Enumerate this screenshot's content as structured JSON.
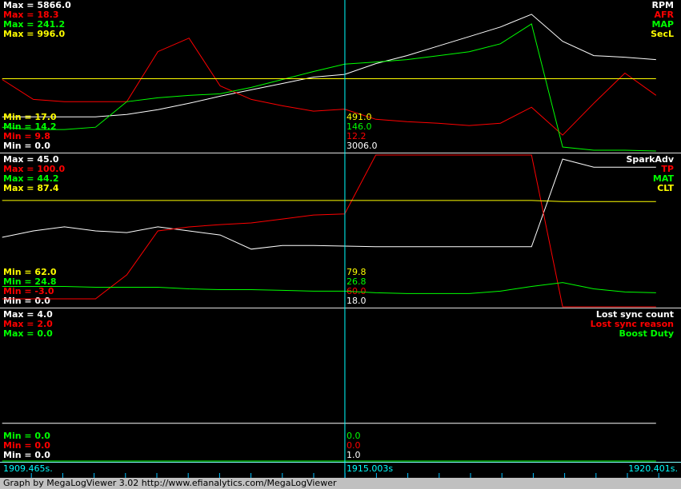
{
  "times": [
    1909.5,
    1910.0,
    1910.5,
    1911.0,
    1911.5,
    1912.0,
    1912.5,
    1913.0,
    1913.5,
    1914.0,
    1914.5,
    1915.0,
    1915.5,
    1916.0,
    1916.5,
    1917.0,
    1917.5,
    1918.0,
    1918.5,
    1919.0,
    1919.5,
    1920.0
  ],
  "time_axis": {
    "xlim": [
      1909.465,
      1920.401
    ],
    "start_label": "1909.465s.",
    "end_label": "1920.401s.",
    "cursor": {
      "value": 1915.003,
      "label": "1915.003s"
    }
  },
  "panels": [
    {
      "traces": [
        {
          "name": "RPM",
          "color": "#ffffff",
          "max": {
            "value": 5866,
            "label": "Max = 5866.0"
          },
          "min": {
            "value": 0,
            "label": "Min = 0.0"
          },
          "cursor": {
            "value": 3006,
            "label": "3006.0"
          },
          "values": [
            1358,
            1358,
            1358,
            1358,
            1451,
            1636,
            1883,
            2161,
            2408,
            2655,
            2902,
            3006,
            3427,
            3736,
            4106,
            4477,
            4847,
            5341,
            4291,
            3736,
            3674,
            3581
          ]
        },
        {
          "name": "AFR",
          "color": "#ff0000",
          "max": {
            "value": 18.3,
            "label": "Max = 18.3"
          },
          "min": {
            "value": 9.8,
            "label": "Min = 9.8"
          },
          "cursor": {
            "value": 12.2,
            "label": "12.2"
          },
          "values": [
            13.87,
            12.75,
            12.62,
            12.62,
            12.62,
            15.44,
            16.2,
            13.51,
            12.75,
            12.39,
            12.09,
            12.2,
            11.63,
            11.5,
            11.41,
            11.28,
            11.41,
            12.31,
            10.74,
            12.53,
            14.23,
            12.98
          ]
        },
        {
          "name": "MAP",
          "color": "#00ff00",
          "max": {
            "value": 241.2,
            "label": "Max = 241.2"
          },
          "min": {
            "value": 14.2,
            "label": "Min = 14.2"
          },
          "cursor": {
            "value": 146.0,
            "label": "146.0"
          },
          "values": [
            51.2,
            47.7,
            47.7,
            51.2,
            89.5,
            95.4,
            99.0,
            101.4,
            111.0,
            122.9,
            134.9,
            146.0,
            149.2,
            152.8,
            158.7,
            164.7,
            176.6,
            206.5,
            21.4,
            16.6,
            16.6,
            15.4
          ]
        },
        {
          "name": "SecL",
          "color": "#ffff00",
          "max": {
            "value": 996,
            "label": "Max = 996.0"
          },
          "min": {
            "value": 17,
            "label": "Min = 17.0"
          },
          "cursor": {
            "value": 491,
            "label": "491.0"
          },
          "values": [
            491,
            491,
            491,
            491,
            491,
            491,
            491,
            491,
            491,
            491,
            491,
            491,
            491,
            491,
            491,
            491,
            491,
            491,
            491,
            491,
            491,
            491
          ]
        }
      ]
    },
    {
      "traces": [
        {
          "name": "SparkAdv",
          "color": "#ffffff",
          "max": {
            "value": 45,
            "label": "Max = 45.0"
          },
          "min": {
            "value": 0,
            "label": "Min = 0.0"
          },
          "cursor": {
            "value": 18,
            "label": "18.0"
          },
          "values": [
            20.6,
            22.5,
            23.7,
            22.5,
            22.0,
            23.7,
            22.5,
            21.3,
            17.1,
            18.2,
            18.2,
            18.0,
            17.8,
            17.8,
            17.8,
            17.8,
            17.8,
            17.8,
            43.8,
            41.4,
            41.4,
            41.4
          ]
        },
        {
          "name": "TP",
          "color": "#ff0000",
          "max": {
            "value": 100,
            "label": "Max = 100.0"
          },
          "min": {
            "value": -3,
            "label": "Min = -3.0"
          },
          "cursor": {
            "value": 60,
            "label": "60.0"
          },
          "values": [
            2.4,
            2.4,
            2.4,
            2.4,
            18.7,
            48.5,
            51.2,
            52.8,
            53.9,
            56.6,
            59.3,
            60.0,
            100,
            100,
            100,
            100,
            100,
            100,
            -3,
            -3,
            -3,
            -3
          ]
        },
        {
          "name": "MAT",
          "color": "#00ff00",
          "max": {
            "value": 44.2,
            "label": "Max = 44.2"
          },
          "min": {
            "value": 24.8,
            "label": "Min = 24.8"
          },
          "cursor": {
            "value": 26.8,
            "label": "26.8"
          },
          "values": [
            27.4,
            27.4,
            27.4,
            27.3,
            27.3,
            27.3,
            27.1,
            27.0,
            27.0,
            26.9,
            26.8,
            26.8,
            26.6,
            26.5,
            26.5,
            26.5,
            26.8,
            27.4,
            27.9,
            27.1,
            26.7,
            26.6
          ]
        },
        {
          "name": "CLT",
          "color": "#ffff00",
          "max": {
            "value": 87.4,
            "label": "Max = 87.4"
          },
          "min": {
            "value": 62,
            "label": "Min = 62.0"
          },
          "cursor": {
            "value": 79.8,
            "label": "79.8"
          },
          "values": [
            79.8,
            79.8,
            79.8,
            79.8,
            79.8,
            79.8,
            79.8,
            79.8,
            79.8,
            79.8,
            79.8,
            79.8,
            79.8,
            79.8,
            79.8,
            79.8,
            79.8,
            79.8,
            79.6,
            79.6,
            79.6,
            79.6
          ]
        }
      ]
    },
    {
      "traces": [
        {
          "name": "Lost sync count",
          "color": "#ffffff",
          "max": {
            "value": 4,
            "label": "Max = 4.0"
          },
          "min": {
            "value": 0,
            "label": "Min = 0.0"
          },
          "cursor": {
            "value": 1,
            "label": "1.0"
          },
          "values": [
            1,
            1,
            1,
            1,
            1,
            1,
            1,
            1,
            1,
            1,
            1,
            1,
            1,
            1,
            1,
            1,
            1,
            1,
            1,
            1,
            1,
            1
          ]
        },
        {
          "name": "Lost sync reason",
          "color": "#ff0000",
          "max": {
            "value": 2,
            "label": "Max = 2.0"
          },
          "min": {
            "value": 0,
            "label": "Min = 0.0"
          },
          "cursor": {
            "value": 0,
            "label": "0.0"
          },
          "values": [
            0,
            0,
            0,
            0,
            0,
            0,
            0,
            0,
            0,
            0,
            0,
            0,
            0,
            0,
            0,
            0,
            0,
            0,
            0,
            0,
            0,
            0
          ]
        },
        {
          "name": "Boost Duty",
          "color": "#00ff00",
          "max": {
            "value": 0,
            "label": "Max = 0.0"
          },
          "min": {
            "value": 0,
            "label": "Min = 0.0"
          },
          "cursor": {
            "value": 0,
            "label": "0.0"
          },
          "values": [
            0,
            0,
            0,
            0,
            0,
            0,
            0,
            0,
            0,
            0,
            0,
            0,
            0,
            0,
            0,
            0,
            0,
            0,
            0,
            0,
            0,
            0
          ]
        }
      ]
    }
  ],
  "footer": "Graph by MegaLogViewer 3.02 http://www.efianalytics.com/MegaLogViewer"
}
